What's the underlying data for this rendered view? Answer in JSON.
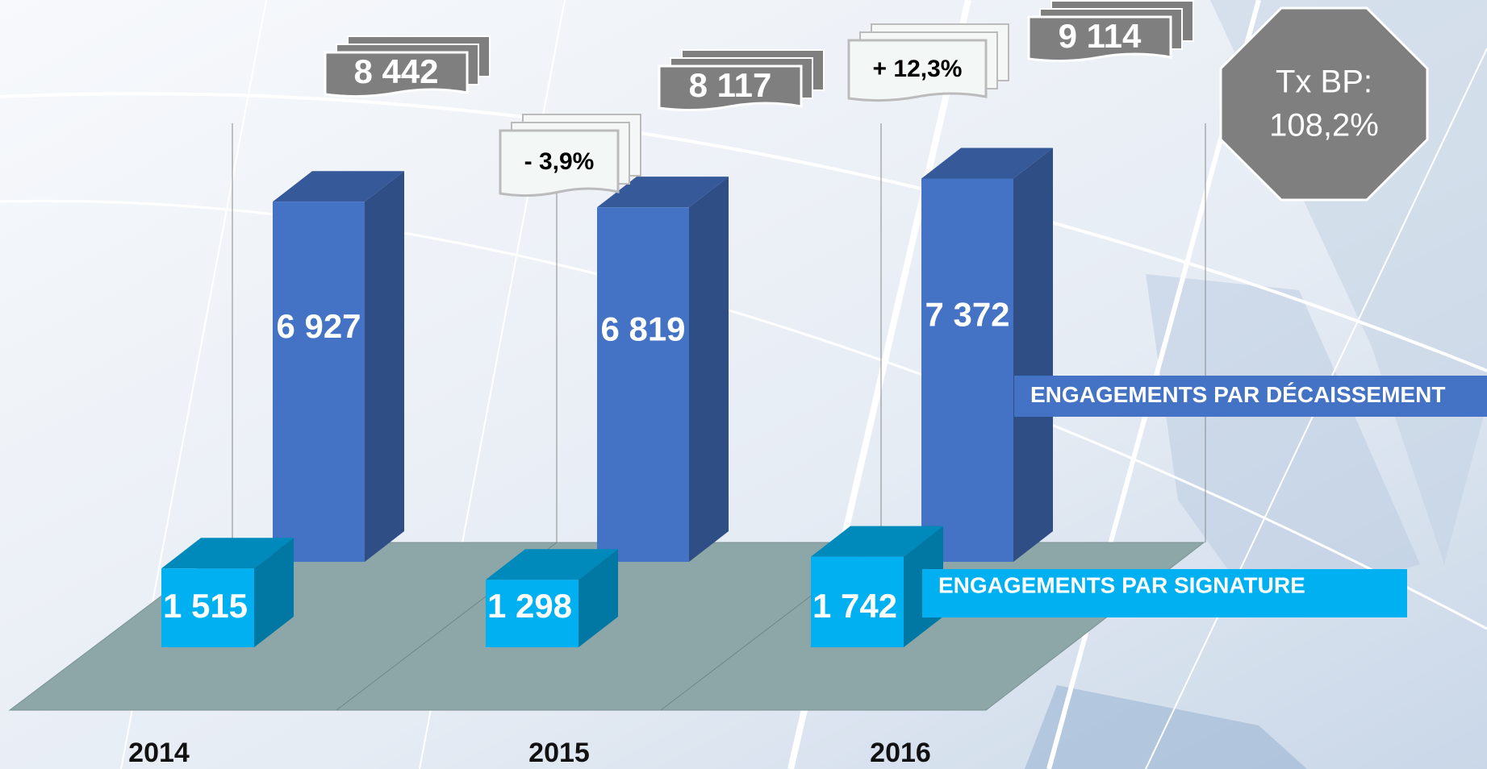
{
  "chart_data": {
    "type": "bar3d",
    "categories": [
      "2014",
      "2015",
      "2016"
    ],
    "series": [
      {
        "name": "ENGAGEMENTS PAR DÉCAISSEMENT",
        "color": "#4472c4",
        "values": [
          6927,
          6819,
          7372
        ],
        "value_labels": [
          "6 927",
          "6 819",
          "7 372"
        ]
      },
      {
        "name": "ENGAGEMENTS PAR SIGNATURE",
        "color": "#00b0f0",
        "values": [
          1515,
          1298,
          1742
        ],
        "value_labels": [
          "1 515",
          "1 298",
          "1 742"
        ]
      }
    ],
    "totals": {
      "values": [
        8442,
        8117,
        9114
      ],
      "value_labels": [
        "8 442",
        "8 117",
        "9 114"
      ]
    },
    "changes": {
      "values": [
        null,
        -3.9,
        12.3
      ],
      "value_labels": [
        null,
        "- 3,9%",
        "+ 12,3%"
      ]
    },
    "badge": {
      "title": "Tx BP:",
      "value": 108.2,
      "value_label": "108,2%"
    }
  }
}
